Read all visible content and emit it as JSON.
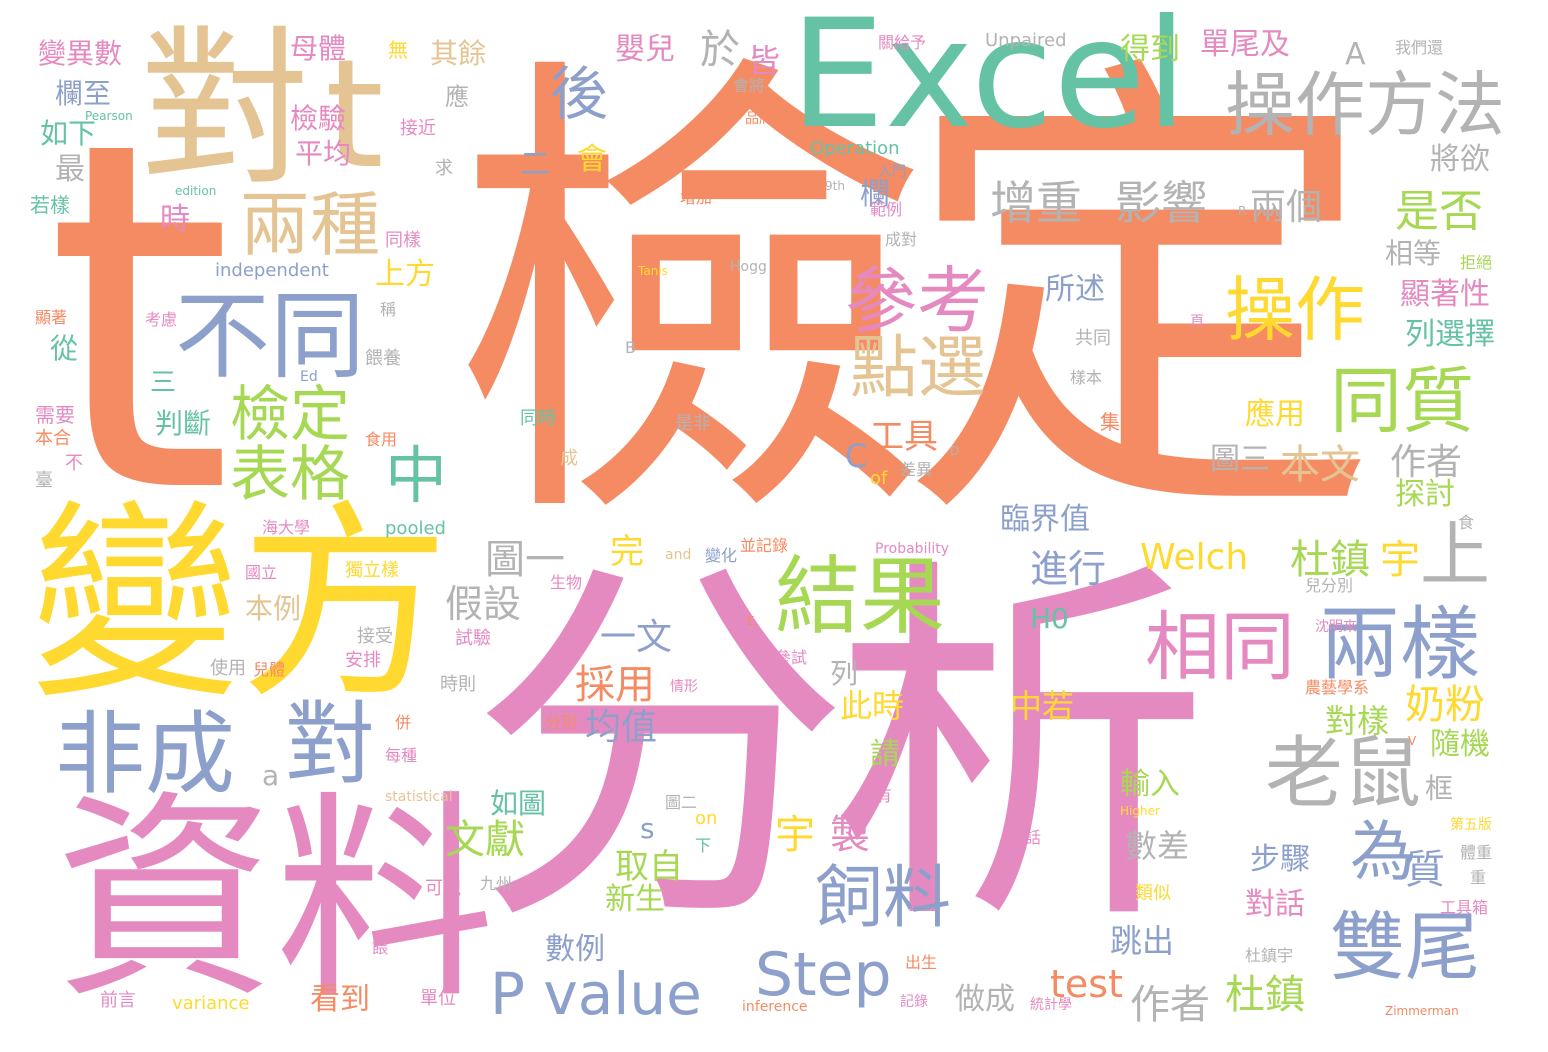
{
  "palette": {
    "orange": "#f58b63",
    "pink": "#e58ac1",
    "teal": "#66c2a5",
    "yellow": "#ffd92f",
    "tan": "#e5c494",
    "blue": "#8da0cb",
    "green": "#a6d854",
    "gray": "#b3b3b3"
  },
  "words": [
    {
      "text": "檢定",
      "color": "orange"
    },
    {
      "text": "t",
      "color": "orange"
    },
    {
      "text": "分析",
      "color": "pink"
    },
    {
      "text": "資料",
      "color": "pink"
    },
    {
      "text": "變方",
      "color": "yellow"
    },
    {
      "text": "對",
      "color": "tan"
    },
    {
      "text": "t",
      "color": "tan"
    },
    {
      "text": "Excel",
      "color": "teal"
    },
    {
      "text": "操作方法",
      "color": "gray"
    },
    {
      "text": "兩種",
      "color": "tan"
    },
    {
      "text": "不同",
      "color": "blue"
    },
    {
      "text": "參考",
      "color": "pink"
    },
    {
      "text": "點選",
      "color": "tan"
    },
    {
      "text": "操作",
      "color": "yellow"
    },
    {
      "text": "同質",
      "color": "green"
    },
    {
      "text": "檢定",
      "color": "green"
    },
    {
      "text": "表格",
      "color": "green"
    },
    {
      "text": "中",
      "color": "teal"
    },
    {
      "text": "結果",
      "color": "green"
    },
    {
      "text": "兩樣",
      "color": "blue"
    },
    {
      "text": "相同",
      "color": "pink"
    },
    {
      "text": "非成",
      "color": "blue"
    },
    {
      "text": "對",
      "color": "blue"
    },
    {
      "text": "老鼠",
      "color": "gray"
    },
    {
      "text": "為",
      "color": "blue"
    },
    {
      "text": "質",
      "color": "blue"
    },
    {
      "text": "飼料",
      "color": "blue"
    },
    {
      "text": "雙尾",
      "color": "blue"
    },
    {
      "text": "Step",
      "color": "blue"
    },
    {
      "text": "P value",
      "color": "blue"
    },
    {
      "text": "增重",
      "color": "gray"
    },
    {
      "text": "影響",
      "color": "gray"
    },
    {
      "text": "後",
      "color": "blue"
    },
    {
      "text": "杜鎮",
      "color": "green"
    },
    {
      "text": "宇",
      "color": "yellow"
    },
    {
      "text": "上",
      "color": "gray"
    },
    {
      "text": "作者",
      "color": "gray"
    },
    {
      "text": "杜鎮",
      "color": "green"
    },
    {
      "text": "test",
      "color": "orange"
    },
    {
      "text": "宇",
      "color": "yellow"
    },
    {
      "text": "製",
      "color": "pink"
    },
    {
      "text": "Welch",
      "color": "yellow"
    },
    {
      "text": "本文",
      "color": "tan"
    },
    {
      "text": "作者",
      "color": "gray"
    },
    {
      "text": "是否",
      "color": "green"
    },
    {
      "text": "兩個",
      "color": "gray"
    },
    {
      "text": "奶粉",
      "color": "yellow"
    },
    {
      "text": "文獻",
      "color": "green"
    },
    {
      "text": "採用",
      "color": "orange"
    },
    {
      "text": "均值",
      "color": "blue"
    },
    {
      "text": "進行",
      "color": "blue"
    },
    {
      "text": "圖一",
      "color": "gray"
    },
    {
      "text": "一文",
      "color": "blue"
    },
    {
      "text": "假設",
      "color": "gray"
    },
    {
      "text": "取自",
      "color": "green"
    },
    {
      "text": "新生",
      "color": "green"
    },
    {
      "text": "數例",
      "color": "blue"
    },
    {
      "text": "看到",
      "color": "orange"
    },
    {
      "text": "做成",
      "color": "gray"
    },
    {
      "text": "跳出",
      "color": "blue"
    },
    {
      "text": "對話",
      "color": "pink"
    },
    {
      "text": "步驟",
      "color": "blue"
    },
    {
      "text": "數差",
      "color": "gray"
    },
    {
      "text": "輸入",
      "color": "green"
    },
    {
      "text": "變異數",
      "color": "pink"
    },
    {
      "text": "欄至",
      "color": "blue"
    },
    {
      "text": "如下",
      "color": "teal"
    },
    {
      "text": "母體",
      "color": "pink"
    },
    {
      "text": "其餘",
      "color": "tan"
    },
    {
      "text": "嬰兒",
      "color": "pink"
    },
    {
      "text": "得到",
      "color": "green"
    },
    {
      "text": "單尾及",
      "color": "pink"
    },
    {
      "text": "平均",
      "color": "pink"
    },
    {
      "text": "檢驗",
      "color": "pink"
    },
    {
      "text": "工具",
      "color": "orange"
    },
    {
      "text": "所述",
      "color": "blue"
    },
    {
      "text": "上方",
      "color": "yellow"
    },
    {
      "text": "顯著性",
      "color": "pink"
    },
    {
      "text": "列選擇",
      "color": "teal"
    },
    {
      "text": "應用",
      "color": "yellow"
    },
    {
      "text": "探討",
      "color": "green"
    },
    {
      "text": "臨界值",
      "color": "blue"
    },
    {
      "text": "相等",
      "color": "gray"
    },
    {
      "text": "將欲",
      "color": "gray"
    },
    {
      "text": "隨機",
      "color": "green"
    },
    {
      "text": "此時",
      "color": "yellow"
    },
    {
      "text": "中若",
      "color": "yellow"
    },
    {
      "text": "對樣",
      "color": "green"
    },
    {
      "text": "如圖",
      "color": "teal"
    },
    {
      "text": "從",
      "color": "teal"
    },
    {
      "text": "判斷",
      "color": "teal"
    },
    {
      "text": "三",
      "color": "teal"
    },
    {
      "text": "時",
      "color": "pink"
    },
    {
      "text": "最",
      "color": "gray"
    },
    {
      "text": "欄",
      "color": "blue"
    },
    {
      "text": "皆",
      "color": "pink"
    },
    {
      "text": "於",
      "color": "gray"
    },
    {
      "text": "會",
      "color": "yellow"
    },
    {
      "text": "二",
      "color": "blue"
    },
    {
      "text": "應",
      "color": "gray"
    },
    {
      "text": "A",
      "color": "gray"
    },
    {
      "text": "完",
      "color": "yellow"
    },
    {
      "text": "列",
      "color": "gray"
    },
    {
      "text": "請",
      "color": "green"
    },
    {
      "text": "本例",
      "color": "tan"
    },
    {
      "text": "圖三",
      "color": "gray"
    },
    {
      "text": "C",
      "color": "blue"
    },
    {
      "text": "a",
      "color": "gray"
    },
    {
      "text": "s",
      "color": "blue"
    },
    {
      "text": "H0",
      "color": "teal"
    },
    {
      "text": "框",
      "color": "gray"
    },
    {
      "text": "Unpaired",
      "color": "gray"
    },
    {
      "text": "Operation",
      "color": "teal"
    },
    {
      "text": "independent",
      "color": "blue"
    },
    {
      "text": "pooled",
      "color": "teal"
    },
    {
      "text": "variance",
      "color": "yellow"
    },
    {
      "text": "statistical",
      "color": "tan"
    },
    {
      "text": "Pearson",
      "color": "teal"
    },
    {
      "text": "edition",
      "color": "teal"
    },
    {
      "text": "Tanis",
      "color": "yellow"
    },
    {
      "text": "Hogg",
      "color": "gray"
    },
    {
      "text": "Probability",
      "color": "pink"
    },
    {
      "text": "Higher",
      "color": "yellow"
    },
    {
      "text": "inference",
      "color": "orange"
    },
    {
      "text": "Zimmerman",
      "color": "orange"
    },
    {
      "text": "9th",
      "color": "gray"
    },
    {
      "text": "of",
      "color": "yellow"
    },
    {
      "text": "and",
      "color": "tan"
    },
    {
      "text": "on",
      "color": "yellow"
    },
    {
      "text": "Ed",
      "color": "blue"
    },
    {
      "text": "B",
      "color": "gray"
    },
    {
      "text": "R",
      "color": "gray"
    },
    {
      "text": "D",
      "color": "gray"
    },
    {
      "text": "E",
      "color": "orange"
    },
    {
      "text": "V",
      "color": "orange"
    },
    {
      "text": "關給予",
      "color": "pink"
    },
    {
      "text": "我們還",
      "color": "gray"
    },
    {
      "text": "無",
      "color": "yellow"
    },
    {
      "text": "會將",
      "color": "gray"
    },
    {
      "text": "品牌",
      "color": "orange"
    },
    {
      "text": "接近",
      "color": "pink"
    },
    {
      "text": "求",
      "color": "gray"
    },
    {
      "text": "若樣",
      "color": "teal"
    },
    {
      "text": "增加",
      "color": "orange"
    },
    {
      "text": "入門",
      "color": "blue"
    },
    {
      "text": "範例",
      "color": "pink"
    },
    {
      "text": "成對",
      "color": "gray"
    },
    {
      "text": "同樣",
      "color": "pink"
    },
    {
      "text": "拒絕",
      "color": "green"
    },
    {
      "text": "顯著",
      "color": "orange"
    },
    {
      "text": "考慮",
      "color": "pink"
    },
    {
      "text": "稱",
      "color": "gray"
    },
    {
      "text": "頁",
      "color": "pink"
    },
    {
      "text": "共同",
      "color": "gray"
    },
    {
      "text": "餵養",
      "color": "gray"
    },
    {
      "text": "樣本",
      "color": "gray"
    },
    {
      "text": "需要",
      "color": "pink"
    },
    {
      "text": "本合",
      "color": "orange"
    },
    {
      "text": "不",
      "color": "pink"
    },
    {
      "text": "臺",
      "color": "gray"
    },
    {
      "text": "食用",
      "color": "orange"
    },
    {
      "text": "同時",
      "color": "teal"
    },
    {
      "text": "是非",
      "color": "gray"
    },
    {
      "text": "集",
      "color": "orange"
    },
    {
      "text": "成",
      "color": "tan"
    },
    {
      "text": "差異",
      "color": "gray"
    },
    {
      "text": "海大學",
      "color": "pink"
    },
    {
      "text": "國立",
      "color": "pink"
    },
    {
      "text": "獨立樣",
      "color": "yellow"
    },
    {
      "text": "生物",
      "color": "pink"
    },
    {
      "text": "並記錄",
      "color": "orange"
    },
    {
      "text": "變化",
      "color": "blue"
    },
    {
      "text": "食",
      "color": "gray"
    },
    {
      "text": "兒分別",
      "color": "gray"
    },
    {
      "text": "試驗",
      "color": "pink"
    },
    {
      "text": "沈明來",
      "color": "pink"
    },
    {
      "text": "使用",
      "color": "gray"
    },
    {
      "text": "接受",
      "color": "gray"
    },
    {
      "text": "安排",
      "color": "pink"
    },
    {
      "text": "兒體",
      "color": "orange"
    },
    {
      "text": "參試",
      "color": "pink"
    },
    {
      "text": "時則",
      "color": "gray"
    },
    {
      "text": "情形",
      "color": "pink"
    },
    {
      "text": "農藝學系",
      "color": "orange"
    },
    {
      "text": "分別",
      "color": "orange"
    },
    {
      "text": "併",
      "color": "orange"
    },
    {
      "text": "每種",
      "color": "pink"
    },
    {
      "text": "圖二",
      "color": "gray"
    },
    {
      "text": "下",
      "color": "teal"
    },
    {
      "text": "話",
      "color": "pink"
    },
    {
      "text": "所有",
      "color": "pink"
    },
    {
      "text": "可視",
      "color": "pink"
    },
    {
      "text": "九州",
      "color": "gray"
    },
    {
      "text": "類似",
      "color": "yellow"
    },
    {
      "text": "第五版",
      "color": "yellow"
    },
    {
      "text": "體重",
      "color": "gray"
    },
    {
      "text": "重",
      "color": "gray"
    },
    {
      "text": "工具箱",
      "color": "pink"
    },
    {
      "text": "出生",
      "color": "orange"
    },
    {
      "text": "杜鎮宇",
      "color": "gray"
    },
    {
      "text": "記錄",
      "color": "pink"
    },
    {
      "text": "統計學",
      "color": "pink"
    },
    {
      "text": "單位",
      "color": "pink"
    },
    {
      "text": "前言",
      "color": "pink"
    },
    {
      "text": "餵",
      "color": "pink"
    }
  ]
}
